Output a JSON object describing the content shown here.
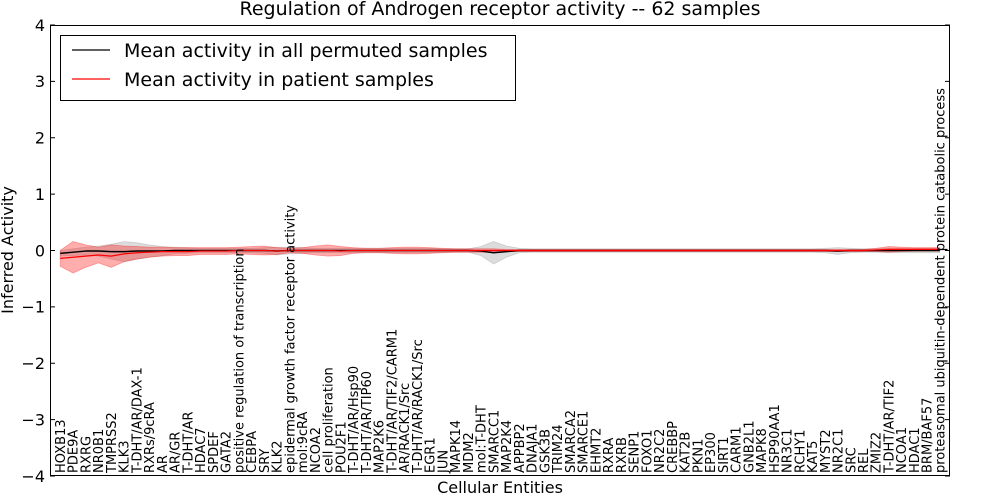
{
  "chart_data": {
    "type": "line",
    "title": "Regulation of Androgen receptor activity -- 62 samples",
    "xlabel": "Cellular Entities",
    "ylabel": "Inferred Activity",
    "ylim": [
      -4,
      4
    ],
    "yticks": [
      4,
      3,
      2,
      1,
      0,
      -1,
      -2,
      -3,
      -4
    ],
    "ytick_labels": [
      "4",
      "3",
      "2",
      "1",
      "0",
      "−1",
      "−2",
      "−3",
      "−4"
    ],
    "grid": false,
    "legend_position": "top-left",
    "categories": [
      "HOXB13",
      "PDE9A",
      "RXRG",
      "NR0B1",
      "TMPRSS2",
      "KLK3",
      "T-DHT/AR/DAX-1",
      "RXRs/9cRA",
      "AR",
      "AR/GR",
      "T-DHT/AR",
      "HDAC7",
      "SPDEF",
      "GATA2",
      "positive regulation of transcription",
      "CEBPA",
      "SRY",
      "KLK2",
      "epidermal growth factor receptor activity",
      "mol:9cRA",
      "NCOA2",
      "cell proliferation",
      "POU2F1",
      "T-DHT/AR/Hsp90",
      "T-DHT/AR/TIP60",
      "MAP2K6",
      "T-DHT/AR/TIF2/CARM1",
      "AR/RACK1/Src",
      "T-DHT/AR/RACK1/Src",
      "EGR1",
      "JUN",
      "MAPK14",
      "MDM2",
      "mol:T-DHT",
      "SMARCC1",
      "MAP2K4",
      "APPBP2",
      "DNAJA1",
      "GSK3B",
      "TRIM24",
      "SMARCA2",
      "SMARCE1",
      "EHMT2",
      "RXRA",
      "RXRB",
      "SENP1",
      "FOXO1",
      "NR2C2",
      "CREBBP",
      "KAT2B",
      "PKN1",
      "EP300",
      "SIRT1",
      "CARM1",
      "GNB2L1",
      "MAPK8",
      "HSP90AA1",
      "NR3C1",
      "RCHY1",
      "KAT5",
      "MYST2",
      "NR2C1",
      "SRC",
      "REL",
      "ZMIZ2",
      "T-DHT/AR/TIF2",
      "NCOA1",
      "HDAC1",
      "BRM/BAF57",
      "proteasomal ubiquitin-dependent protein catabolic process"
    ],
    "series": [
      {
        "name": "Mean activity in all permuted samples",
        "color": "#000000",
        "band_color": "#808080",
        "values": [
          -0.05,
          -0.03,
          -0.01,
          -0.01,
          -0.02,
          -0.02,
          -0.01,
          -0.01,
          -0.01,
          0,
          0,
          0,
          0,
          0,
          0,
          0,
          0,
          -0.01,
          0,
          0,
          0,
          0,
          0,
          0,
          0,
          0,
          0,
          0,
          0,
          0,
          0,
          0,
          0,
          -0.01,
          -0.04,
          -0.02,
          0,
          0,
          0,
          0,
          0,
          0,
          0,
          0,
          0,
          0,
          0,
          0,
          0,
          0,
          0,
          0,
          0,
          0,
          0,
          0,
          0,
          0,
          0,
          0,
          0,
          -0.01,
          0,
          0,
          0,
          0,
          0,
          0,
          0,
          0
        ],
        "band_halfwidth": [
          0.05,
          0.06,
          0.07,
          0.09,
          0.13,
          0.18,
          0.15,
          0.11,
          0.08,
          0.06,
          0.05,
          0.04,
          0.04,
          0.04,
          0.04,
          0.04,
          0.05,
          0.07,
          0.06,
          0.05,
          0.04,
          0.04,
          0.04,
          0.04,
          0.04,
          0.04,
          0.04,
          0.04,
          0.04,
          0.04,
          0.03,
          0.03,
          0.03,
          0.08,
          0.2,
          0.1,
          0.04,
          0.03,
          0.03,
          0.03,
          0.03,
          0.03,
          0.03,
          0.03,
          0.03,
          0.03,
          0.03,
          0.03,
          0.03,
          0.03,
          0.03,
          0.03,
          0.03,
          0.03,
          0.03,
          0.03,
          0.03,
          0.03,
          0.03,
          0.03,
          0.04,
          0.06,
          0.04,
          0.03,
          0.03,
          0.04,
          0.04,
          0.04,
          0.04,
          0.04
        ]
      },
      {
        "name": "Mean activity in patient samples",
        "color": "#ff0000",
        "band_color": "#ff0000",
        "values": [
          -0.14,
          -0.12,
          -0.1,
          -0.08,
          -0.1,
          -0.06,
          -0.04,
          -0.03,
          -0.02,
          -0.02,
          -0.02,
          -0.01,
          -0.01,
          -0.01,
          0,
          0,
          0,
          -0.01,
          0,
          0,
          0,
          0,
          -0.01,
          0,
          0,
          0,
          0,
          0,
          0,
          0,
          0,
          0,
          0,
          0,
          0,
          0,
          0,
          0,
          0,
          0,
          0,
          0,
          0,
          0,
          0,
          0,
          0,
          0,
          0,
          0,
          0,
          0,
          0,
          0,
          0,
          0,
          0,
          0,
          0,
          0,
          0,
          0,
          0,
          0,
          0.01,
          0.02,
          0.02,
          0.02,
          0.02,
          0.02
        ],
        "band_halfwidth": [
          0.14,
          0.28,
          0.2,
          0.14,
          0.2,
          0.14,
          0.11,
          0.09,
          0.08,
          0.07,
          0.07,
          0.06,
          0.06,
          0.06,
          0.06,
          0.07,
          0.08,
          0.06,
          0.04,
          0.05,
          0.08,
          0.1,
          0.08,
          0.05,
          0.04,
          0.04,
          0.05,
          0.06,
          0.06,
          0.05,
          0.04,
          0.03,
          0.03,
          0.03,
          0.03,
          0.02,
          0.02,
          0.02,
          0.02,
          0.02,
          0.02,
          0.02,
          0.02,
          0.02,
          0.02,
          0.02,
          0.02,
          0.02,
          0.02,
          0.02,
          0.02,
          0.02,
          0.02,
          0.02,
          0.02,
          0.02,
          0.02,
          0.02,
          0.02,
          0.02,
          0.02,
          0.02,
          0.02,
          0.02,
          0.03,
          0.05,
          0.04,
          0.03,
          0.03,
          0.03
        ]
      }
    ]
  }
}
